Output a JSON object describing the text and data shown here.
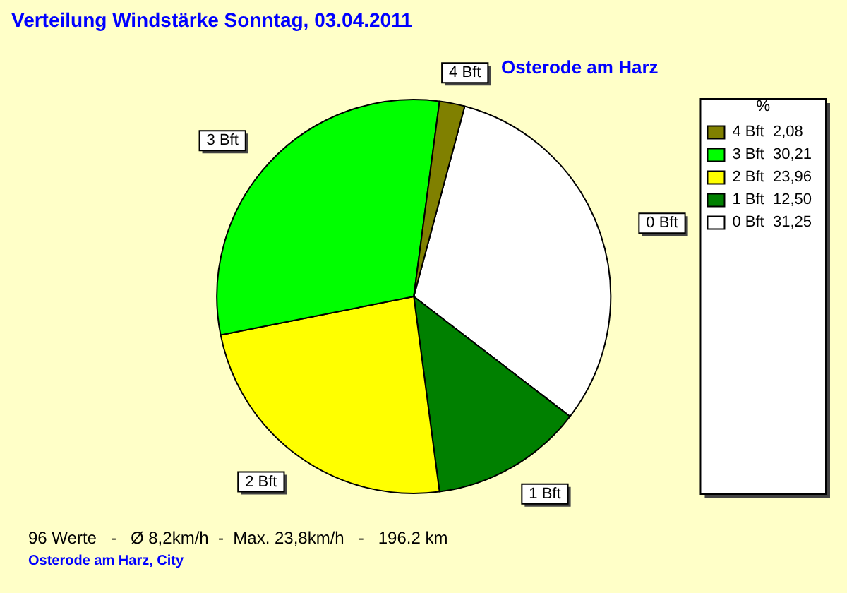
{
  "chart_data": {
    "type": "pie",
    "title": "Verteilung Windstärke  Sonntag, 03.04.2011",
    "subtitle": "Osterode am Harz",
    "legend_title": "%",
    "categories": [
      "0 Bft",
      "1 Bft",
      "2 Bft",
      "3 Bft",
      "4 Bft"
    ],
    "values": [
      31.25,
      12.5,
      23.96,
      30.21,
      2.08
    ],
    "value_labels": [
      "31,25",
      "12,50",
      "23,96",
      "30,21",
      "2,08"
    ],
    "colors": [
      "#ffffff",
      "#008000",
      "#ffff00",
      "#00ff00",
      "#808000"
    ],
    "legend": "top right",
    "annotations": [
      "96 Werte   -   Ø 8,2km/h  -  Max. 23,8km/h   -   196.2 km",
      "Osterode am Harz, City"
    ]
  }
}
